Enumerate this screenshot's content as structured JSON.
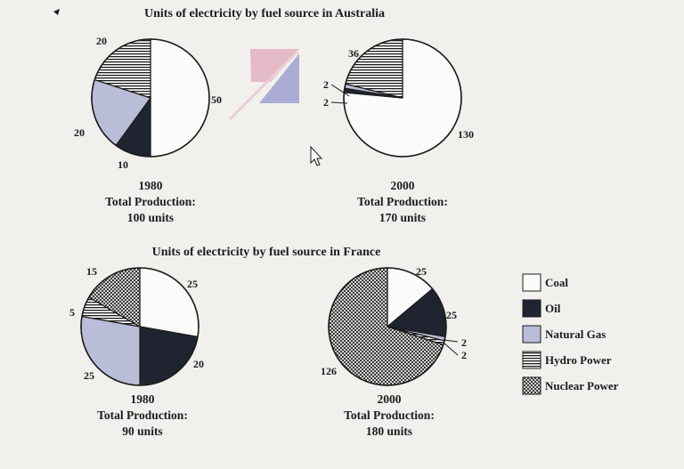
{
  "colors": {
    "Coal": "#fbfbfb",
    "Oil": "#1f2430",
    "Natural Gas": "#b9bdd8",
    "Hydro Power": "hatch-horizontal",
    "Nuclear Power": "crosshatch",
    "outline": "#1c1c1c"
  },
  "legend": [
    "Coal",
    "Oil",
    "Natural Gas",
    "Hydro Power",
    "Nuclear Power"
  ],
  "chart_data": [
    {
      "type": "pie",
      "title": "Units of electricity by fuel source in Australia",
      "year": "1980",
      "total_label": "Total Production:",
      "total_value": "100 units",
      "categories": [
        "Coal",
        "Oil",
        "Natural Gas",
        "Hydro Power"
      ],
      "values": [
        50,
        10,
        20,
        20
      ],
      "value_labels": [
        "50",
        "10",
        "20",
        "20"
      ]
    },
    {
      "type": "pie",
      "title": "",
      "year": "2000",
      "total_label": "Total Production:",
      "total_value": "170 units",
      "categories": [
        "Coal",
        "Oil",
        "Natural Gas",
        "Hydro Power"
      ],
      "values": [
        130,
        2,
        2,
        36
      ],
      "value_labels": [
        "130",
        "2",
        "2",
        "36"
      ]
    },
    {
      "type": "pie",
      "title": "Units of electricity by fuel source in France",
      "year": "1980",
      "total_label": "Total Production:",
      "total_value": "90 units",
      "categories": [
        "Coal",
        "Oil",
        "Natural Gas",
        "Hydro Power",
        "Nuclear Power"
      ],
      "values": [
        25,
        20,
        25,
        5,
        15
      ],
      "value_labels": [
        "25",
        "20",
        "25",
        "5",
        "15"
      ]
    },
    {
      "type": "pie",
      "title": "",
      "year": "2000",
      "total_label": "Total Production:",
      "total_value": "180 units",
      "categories": [
        "Coal",
        "Oil",
        "Natural Gas",
        "Hydro Power",
        "Nuclear Power"
      ],
      "values": [
        25,
        25,
        2,
        2,
        126
      ],
      "value_labels": [
        "25",
        "25",
        "2",
        "2",
        "126"
      ]
    }
  ]
}
